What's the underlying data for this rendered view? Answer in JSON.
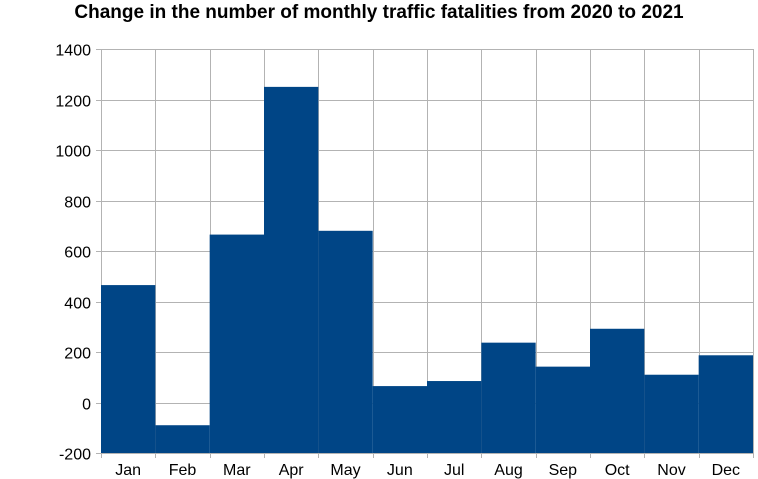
{
  "chart_data": {
    "type": "bar",
    "title": "Change in the number of monthly traffic fatalities from 2020 to 2021",
    "xlabel": "",
    "ylabel": "",
    "categories": [
      "Jan",
      "Feb",
      "Mar",
      "Apr",
      "May",
      "Jun",
      "Jul",
      "Aug",
      "Sep",
      "Oct",
      "Nov",
      "Dec"
    ],
    "values": [
      465,
      -90,
      665,
      1250,
      680,
      65,
      85,
      237,
      142,
      292,
      110,
      187
    ],
    "ylim": [
      -200,
      1400
    ],
    "yticks": [
      -200,
      0,
      200,
      400,
      600,
      800,
      1000,
      1200,
      1400
    ],
    "grid": true,
    "legend": "none",
    "bar_color": "#004586",
    "grid_color": "#b3b3b3"
  }
}
